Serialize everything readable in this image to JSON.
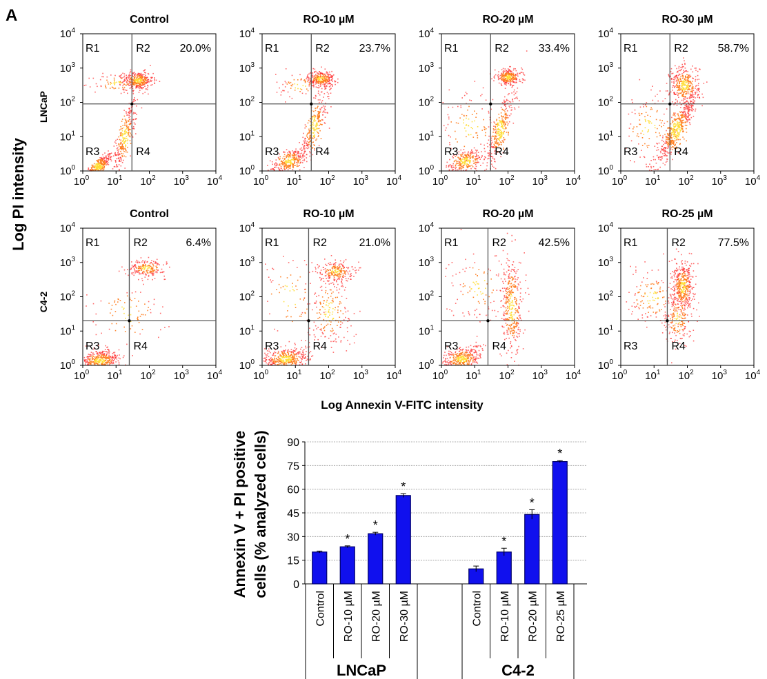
{
  "panel_label": "A",
  "flow": {
    "y_axis_label": "Log PI intensity",
    "x_axis_label": "Log Annexin V-FITC intensity",
    "row_labels": [
      "LNCaP",
      "C4-2"
    ],
    "tick_labels": [
      {
        "base": "10",
        "exp": "0"
      },
      {
        "base": "10",
        "exp": "1"
      },
      {
        "base": "10",
        "exp": "2"
      },
      {
        "base": "10",
        "exp": "3"
      },
      {
        "base": "10",
        "exp": "4"
      }
    ],
    "region_labels": [
      "R1",
      "R2",
      "R3",
      "R4"
    ]
  },
  "chart_data": [
    {
      "type": "scatter",
      "scale": "log",
      "cell_line": "LNCaP",
      "xlim": [
        1,
        10000
      ],
      "ylim": [
        1,
        10000
      ],
      "panels": [
        {
          "title": "Control",
          "r2_percent": "20.0%",
          "gate": {
            "x": 30,
            "y": 90
          }
        },
        {
          "title": "RO-10 µM",
          "r2_percent": "23.7%",
          "gate": {
            "x": 30,
            "y": 90
          }
        },
        {
          "title": "RO-20 µM",
          "r2_percent": "33.4%",
          "gate": {
            "x": 30,
            "y": 90
          }
        },
        {
          "title": "RO-30 µM",
          "r2_percent": "58.7%",
          "gate": {
            "x": 30,
            "y": 90
          }
        }
      ]
    },
    {
      "type": "scatter",
      "scale": "log",
      "cell_line": "C4-2",
      "xlim": [
        1,
        10000
      ],
      "ylim": [
        1,
        10000
      ],
      "panels": [
        {
          "title": "Control",
          "r2_percent": "6.4%",
          "gate": {
            "x": 25,
            "y": 20
          }
        },
        {
          "title": "RO-10 µM",
          "r2_percent": "21.0%",
          "gate": {
            "x": 25,
            "y": 20
          }
        },
        {
          "title": "RO-20 µM",
          "r2_percent": "42.5%",
          "gate": {
            "x": 25,
            "y": 20
          }
        },
        {
          "title": "RO-25 µM",
          "r2_percent": "77.5%",
          "gate": {
            "x": 25,
            "y": 20
          }
        }
      ]
    },
    {
      "type": "bar",
      "ylabel_lines": [
        "Annexin V + PI positive",
        "cells (% analyzed cells)"
      ],
      "ylim": [
        0,
        90
      ],
      "yticks": [
        0,
        15,
        30,
        45,
        60,
        75,
        90
      ],
      "grid": true,
      "significance_mark": "*",
      "groups": [
        {
          "name": "LNCaP",
          "bars": [
            {
              "category": "Control",
              "value": 20.2,
              "error": 0.6,
              "significant": false
            },
            {
              "category": "RO-10 µM",
              "value": 23.5,
              "error": 0.6,
              "significant": true
            },
            {
              "category": "RO-20 µM",
              "value": 31.8,
              "error": 0.9,
              "significant": true
            },
            {
              "category": "RO-30 µM",
              "value": 56.0,
              "error": 1.2,
              "significant": true
            }
          ]
        },
        {
          "name": "C4-2",
          "bars": [
            {
              "category": "Control",
              "value": 9.5,
              "error": 1.8,
              "significant": false
            },
            {
              "category": "RO-10 µM",
              "value": 20.2,
              "error": 2.4,
              "significant": true
            },
            {
              "category": "RO-20 µM",
              "value": 44.0,
              "error": 3.0,
              "significant": true
            },
            {
              "category": "RO-25 µM",
              "value": 77.5,
              "error": 0.6,
              "significant": true
            }
          ]
        }
      ],
      "colors": {
        "bar_fill": "#1010ee",
        "bar_stroke": "#000066",
        "grid": "#999999"
      }
    }
  ],
  "colors": {
    "dot_hot": "#ffdd33",
    "dot_mid": "#ff7a1a",
    "dot_cold": "#ff2a2a",
    "gate_line": "#555555"
  }
}
